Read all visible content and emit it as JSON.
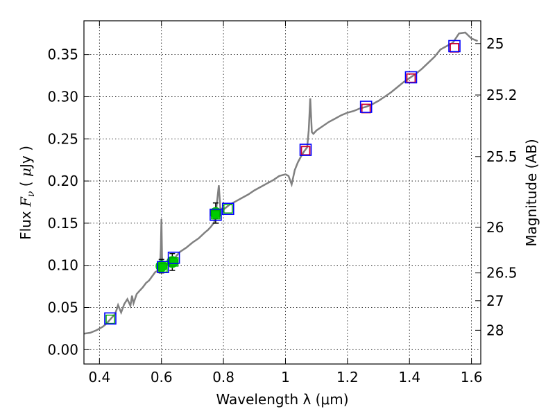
{
  "chart_data": {
    "type": "scatter",
    "xlabel": "Wavelength  λ (μm)",
    "ylabel_left": "Flux  F_ν  ( μJy )",
    "ylabel_right": "Magnitude (AB)",
    "xlim": [
      0.35,
      1.63
    ],
    "ylim": [
      -0.017,
      0.39
    ],
    "grid": true,
    "x_ticks": [
      0.4,
      0.6,
      0.8,
      1.0,
      1.2,
      1.4,
      1.6
    ],
    "x_tick_labels": [
      "0.4",
      "0.6",
      "0.8",
      "1",
      "1.2",
      "1.4",
      "1.6"
    ],
    "y_ticks": [
      0.0,
      0.05,
      0.1,
      0.15,
      0.2,
      0.25,
      0.3,
      0.35
    ],
    "y_tick_labels": [
      "0.00",
      "0.05",
      "0.10",
      "0.15",
      "0.20",
      "0.25",
      "0.30",
      "0.35"
    ],
    "right_ticks": [
      {
        "label": "25",
        "flux": 0.363
      },
      {
        "label": "25.2",
        "flux": 0.302
      },
      {
        "label": "25.5",
        "flux": 0.229
      },
      {
        "label": "26",
        "flux": 0.145
      },
      {
        "label": "26.5",
        "flux": 0.091
      },
      {
        "label": "27",
        "flux": 0.058
      },
      {
        "label": "28",
        "flux": 0.023
      }
    ],
    "model_spectrum": {
      "color": "#808080",
      "points": [
        [
          0.35,
          0.019
        ],
        [
          0.37,
          0.02
        ],
        [
          0.39,
          0.023
        ],
        [
          0.41,
          0.027
        ],
        [
          0.42,
          0.03
        ],
        [
          0.43,
          0.034
        ],
        [
          0.44,
          0.038
        ],
        [
          0.45,
          0.042
        ],
        [
          0.455,
          0.047
        ],
        [
          0.46,
          0.053
        ],
        [
          0.47,
          0.044
        ],
        [
          0.48,
          0.054
        ],
        [
          0.49,
          0.06
        ],
        [
          0.5,
          0.052
        ],
        [
          0.505,
          0.064
        ],
        [
          0.51,
          0.055
        ],
        [
          0.52,
          0.066
        ],
        [
          0.53,
          0.07
        ],
        [
          0.54,
          0.074
        ],
        [
          0.55,
          0.079
        ],
        [
          0.56,
          0.082
        ],
        [
          0.57,
          0.087
        ],
        [
          0.58,
          0.092
        ],
        [
          0.59,
          0.094
        ],
        [
          0.595,
          0.097
        ],
        [
          0.598,
          0.12
        ],
        [
          0.6,
          0.155
        ],
        [
          0.602,
          0.11
        ],
        [
          0.605,
          0.097
        ],
        [
          0.61,
          0.099
        ],
        [
          0.62,
          0.101
        ],
        [
          0.63,
          0.104
        ],
        [
          0.64,
          0.107
        ],
        [
          0.65,
          0.112
        ],
        [
          0.66,
          0.116
        ],
        [
          0.68,
          0.121
        ],
        [
          0.7,
          0.127
        ],
        [
          0.72,
          0.132
        ],
        [
          0.74,
          0.139
        ],
        [
          0.75,
          0.142
        ],
        [
          0.76,
          0.146
        ],
        [
          0.77,
          0.151
        ],
        [
          0.775,
          0.16
        ],
        [
          0.78,
          0.178
        ],
        [
          0.785,
          0.195
        ],
        [
          0.79,
          0.168
        ],
        [
          0.8,
          0.166
        ],
        [
          0.82,
          0.172
        ],
        [
          0.84,
          0.176
        ],
        [
          0.86,
          0.18
        ],
        [
          0.88,
          0.184
        ],
        [
          0.9,
          0.189
        ],
        [
          0.92,
          0.193
        ],
        [
          0.94,
          0.197
        ],
        [
          0.96,
          0.201
        ],
        [
          0.98,
          0.206
        ],
        [
          1.0,
          0.208
        ],
        [
          1.01,
          0.206
        ],
        [
          1.02,
          0.196
        ],
        [
          1.03,
          0.213
        ],
        [
          1.04,
          0.222
        ],
        [
          1.05,
          0.229
        ],
        [
          1.06,
          0.235
        ],
        [
          1.07,
          0.24
        ],
        [
          1.075,
          0.26
        ],
        [
          1.08,
          0.298
        ],
        [
          1.085,
          0.258
        ],
        [
          1.09,
          0.256
        ],
        [
          1.1,
          0.26
        ],
        [
          1.12,
          0.265
        ],
        [
          1.14,
          0.27
        ],
        [
          1.16,
          0.274
        ],
        [
          1.18,
          0.278
        ],
        [
          1.2,
          0.281
        ],
        [
          1.22,
          0.283
        ],
        [
          1.24,
          0.286
        ],
        [
          1.26,
          0.288
        ],
        [
          1.28,
          0.291
        ],
        [
          1.3,
          0.295
        ],
        [
          1.32,
          0.3
        ],
        [
          1.34,
          0.305
        ],
        [
          1.36,
          0.311
        ],
        [
          1.38,
          0.317
        ],
        [
          1.4,
          0.322
        ],
        [
          1.42,
          0.327
        ],
        [
          1.44,
          0.333
        ],
        [
          1.46,
          0.34
        ],
        [
          1.48,
          0.347
        ],
        [
          1.5,
          0.356
        ],
        [
          1.52,
          0.36
        ],
        [
          1.54,
          0.364
        ],
        [
          1.56,
          0.375
        ],
        [
          1.58,
          0.376
        ],
        [
          1.6,
          0.369
        ],
        [
          1.62,
          0.366
        ]
      ]
    },
    "model_photometry_blue": {
      "color": "#0000ff",
      "points": [
        [
          0.435,
          0.037
        ],
        [
          0.605,
          0.098
        ],
        [
          0.64,
          0.109
        ],
        [
          0.775,
          0.16
        ],
        [
          0.815,
          0.167
        ],
        [
          1.065,
          0.237
        ],
        [
          1.26,
          0.288
        ],
        [
          1.405,
          0.323
        ],
        [
          1.545,
          0.36
        ]
      ]
    },
    "model_photometry_green": {
      "color": "#00aa00",
      "points": [
        [
          0.435,
          0.036
        ],
        [
          0.605,
          0.097
        ],
        [
          0.64,
          0.104
        ],
        [
          0.775,
          0.16
        ],
        [
          0.815,
          0.167
        ]
      ]
    },
    "model_photometry_red": {
      "color": "#cc0033",
      "points": [
        [
          1.065,
          0.236
        ],
        [
          1.26,
          0.286
        ],
        [
          1.405,
          0.322
        ],
        [
          1.545,
          0.358
        ]
      ]
    },
    "observed": {
      "color": "#00cc00",
      "points": [
        {
          "x": 0.6,
          "y": 0.099,
          "yerr": 0.008
        },
        {
          "x": 0.635,
          "y": 0.104,
          "yerr": 0.01
        },
        {
          "x": 0.775,
          "y": 0.162,
          "yerr": 0.012
        }
      ]
    }
  }
}
